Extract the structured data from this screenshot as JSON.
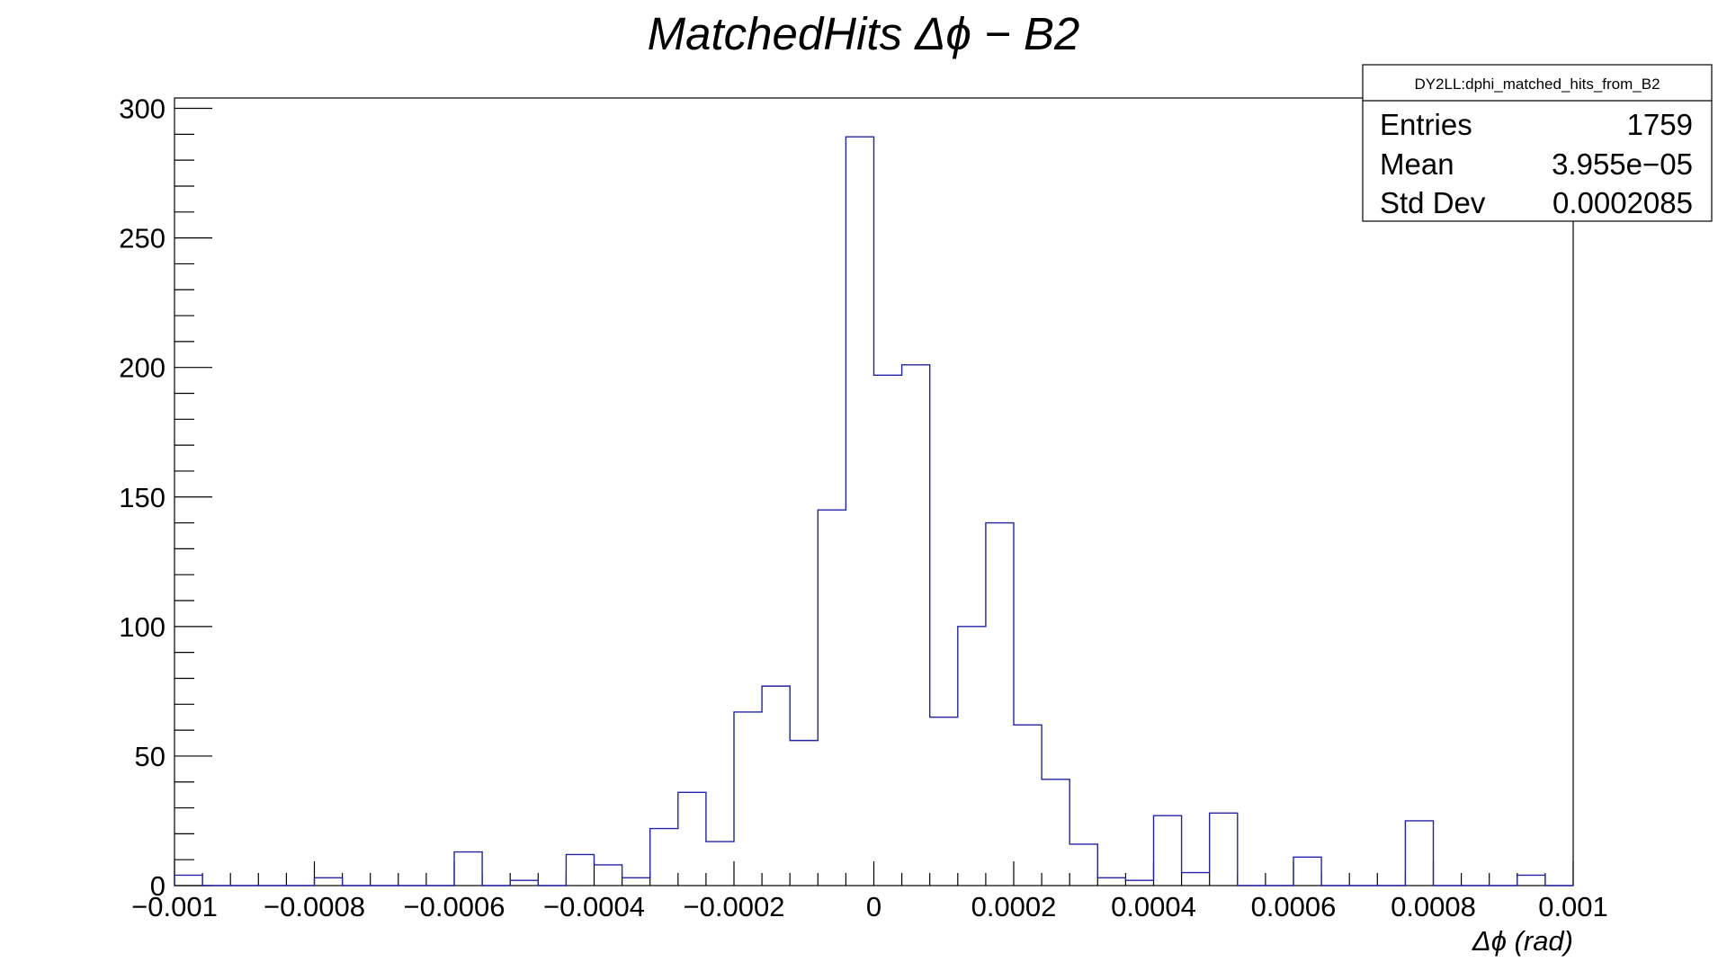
{
  "chart_data": {
    "type": "bar",
    "title": "MatchedHits   Δϕ   − B2",
    "xlabel": "Δϕ   (rad)",
    "ylabel": "",
    "xlim": [
      -0.001,
      0.001
    ],
    "ylim": [
      0,
      304
    ],
    "bin_width": 4e-05,
    "line_color": "#2222aa",
    "grid": false,
    "x_ticks": [
      "−0.001",
      "−0.0008",
      "−0.0006",
      "−0.0004",
      "−0.0002",
      "0",
      "0.0002",
      "0.0004",
      "0.0006",
      "0.0008",
      "0.001"
    ],
    "x_tick_values": [
      -0.001,
      -0.0008,
      -0.0006,
      -0.0004,
      -0.0002,
      0,
      0.0002,
      0.0004,
      0.0006,
      0.0008,
      0.001
    ],
    "y_ticks": [
      "0",
      "50",
      "100",
      "150",
      "200",
      "250",
      "300"
    ],
    "y_tick_values": [
      0,
      50,
      100,
      150,
      200,
      250,
      300
    ],
    "bins": [
      {
        "x": -0.00098,
        "y": 4
      },
      {
        "x": -0.00094,
        "y": 0
      },
      {
        "x": -0.0009,
        "y": 0
      },
      {
        "x": -0.00086,
        "y": 0
      },
      {
        "x": -0.00082,
        "y": 0
      },
      {
        "x": -0.00078,
        "y": 3
      },
      {
        "x": -0.00074,
        "y": 0
      },
      {
        "x": -0.0007,
        "y": 0
      },
      {
        "x": -0.00066,
        "y": 0
      },
      {
        "x": -0.00062,
        "y": 0
      },
      {
        "x": -0.00058,
        "y": 13
      },
      {
        "x": -0.00054,
        "y": 0
      },
      {
        "x": -0.0005,
        "y": 2
      },
      {
        "x": -0.00046,
        "y": 0
      },
      {
        "x": -0.00042,
        "y": 12
      },
      {
        "x": -0.00038,
        "y": 8
      },
      {
        "x": -0.00034,
        "y": 3
      },
      {
        "x": -0.0003,
        "y": 22
      },
      {
        "x": -0.00026,
        "y": 36
      },
      {
        "x": -0.00022,
        "y": 17
      },
      {
        "x": -0.00018,
        "y": 67
      },
      {
        "x": -0.00014,
        "y": 77
      },
      {
        "x": -0.0001,
        "y": 56
      },
      {
        "x": -6e-05,
        "y": 145
      },
      {
        "x": -2e-05,
        "y": 289
      },
      {
        "x": 2e-05,
        "y": 197
      },
      {
        "x": 6e-05,
        "y": 201
      },
      {
        "x": 0.0001,
        "y": 65
      },
      {
        "x": 0.00014,
        "y": 100
      },
      {
        "x": 0.00018,
        "y": 140
      },
      {
        "x": 0.00022,
        "y": 62
      },
      {
        "x": 0.00026,
        "y": 41
      },
      {
        "x": 0.0003,
        "y": 16
      },
      {
        "x": 0.00034,
        "y": 3
      },
      {
        "x": 0.00038,
        "y": 2
      },
      {
        "x": 0.00042,
        "y": 27
      },
      {
        "x": 0.00046,
        "y": 5
      },
      {
        "x": 0.0005,
        "y": 28
      },
      {
        "x": 0.00054,
        "y": 0
      },
      {
        "x": 0.00058,
        "y": 0
      },
      {
        "x": 0.00062,
        "y": 11
      },
      {
        "x": 0.00066,
        "y": 0
      },
      {
        "x": 0.0007,
        "y": 0
      },
      {
        "x": 0.00074,
        "y": 0
      },
      {
        "x": 0.00078,
        "y": 25
      },
      {
        "x": 0.00082,
        "y": 0
      },
      {
        "x": 0.00086,
        "y": 0
      },
      {
        "x": 0.0009,
        "y": 0
      },
      {
        "x": 0.00094,
        "y": 4
      },
      {
        "x": 0.00098,
        "y": 0
      }
    ],
    "legend": "top-right",
    "stats_box": {
      "name": "DY2LL:dphi_matched_hits_from_B2",
      "rows": [
        {
          "label": "Entries",
          "value": "1759"
        },
        {
          "label": "Mean",
          "value": "3.955e−05"
        },
        {
          "label": "Std Dev",
          "value": "0.0002085"
        }
      ]
    }
  }
}
